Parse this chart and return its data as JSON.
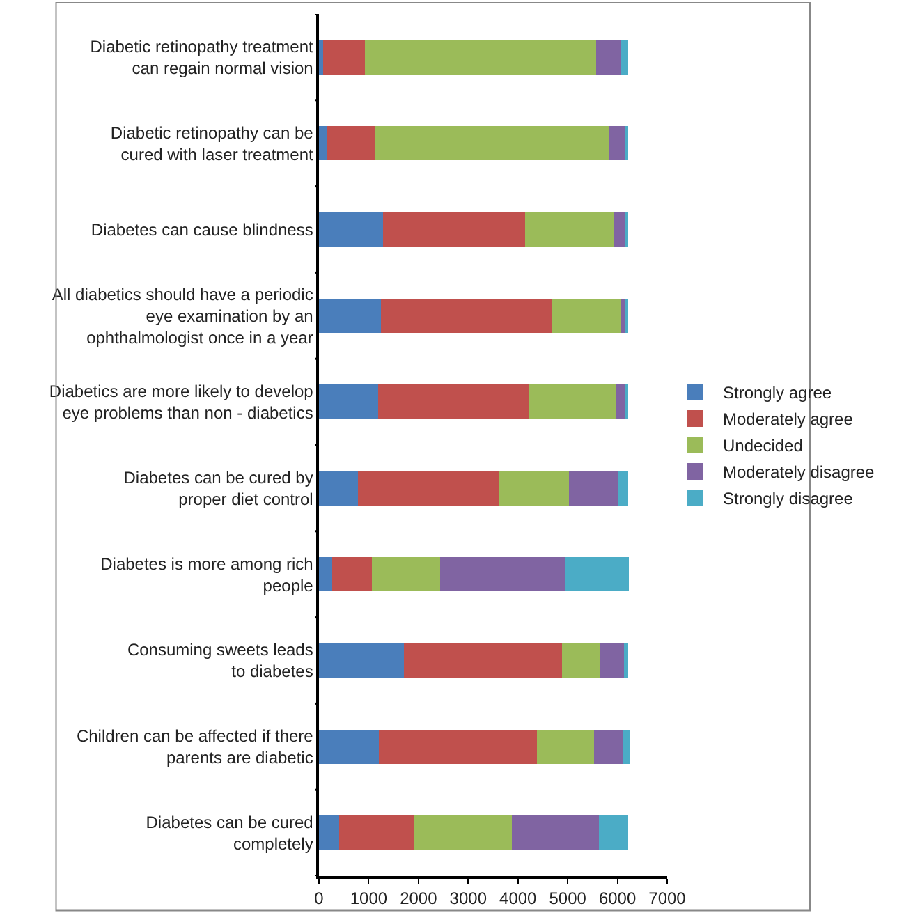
{
  "chart_data": {
    "type": "bar",
    "orientation": "horizontal",
    "stacked": true,
    "categories": [
      "Diabetic retinopathy treatment\ncan regain normal vision",
      "Diabetic retinopathy can be\ncured with laser treatment",
      "Diabetes can cause blindness",
      "All diabetics should have a periodic\neye examination by an\nophthalmologist once in a year",
      "Diabetics are more likely to develop\neye problems than non - diabetics",
      "Diabetes can be cured by\nproper diet control",
      "Diabetes is more among rich\npeople",
      "Consuming sweets leads\nto diabetes",
      "Children can be affected if there\nparents are diabetic",
      "Diabetes can be cured\ncompletely"
    ],
    "series": [
      {
        "name": "Strongly agree",
        "color": "#4a7ebb",
        "values": [
          90,
          160,
          1290,
          1240,
          1190,
          790,
          260,
          1710,
          1210,
          410
        ]
      },
      {
        "name": "Moderately agree",
        "color": "#c0504d",
        "values": [
          830,
          980,
          2850,
          3440,
          3020,
          2840,
          800,
          3180,
          3170,
          1500
        ]
      },
      {
        "name": "Undecided",
        "color": "#9bbb59",
        "values": [
          4650,
          4700,
          1800,
          1400,
          1750,
          1400,
          1380,
          770,
          1150,
          1970
        ]
      },
      {
        "name": "Moderately disagree",
        "color": "#8064a2",
        "values": [
          490,
          300,
          210,
          90,
          190,
          980,
          2500,
          470,
          590,
          1750
        ]
      },
      {
        "name": "Strongly disagree",
        "color": "#4bacc6",
        "values": [
          160,
          70,
          70,
          50,
          70,
          210,
          1290,
          90,
          120,
          590
        ]
      }
    ],
    "xlim": [
      0,
      7000
    ],
    "xticks": [
      0,
      1000,
      2000,
      3000,
      4000,
      5000,
      6000,
      7000
    ],
    "legend": "right"
  }
}
